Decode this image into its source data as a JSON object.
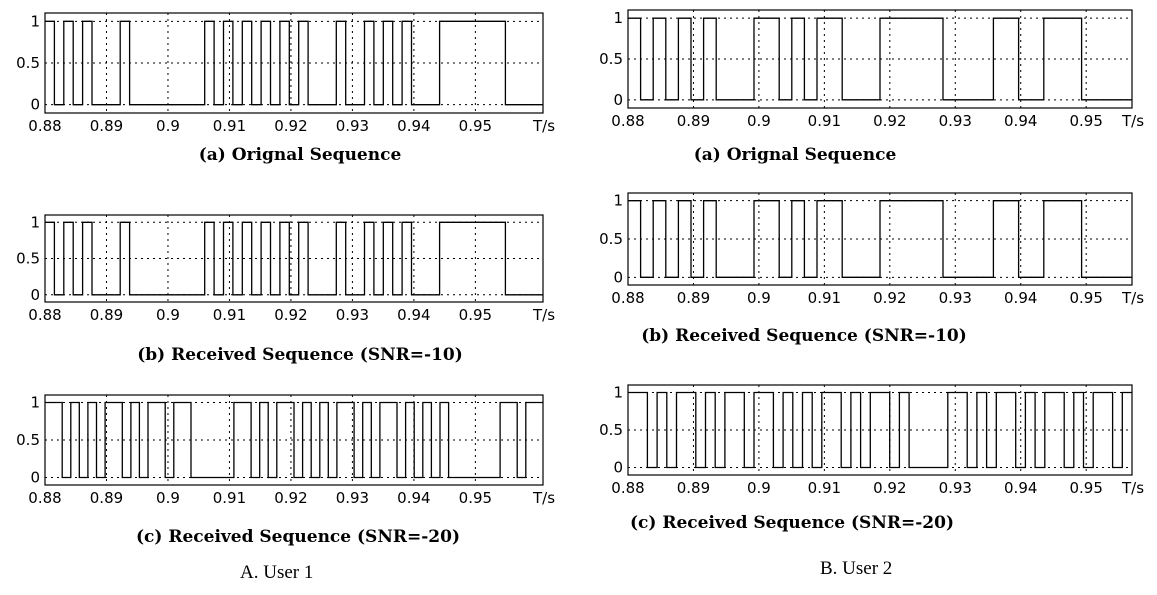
{
  "columns": [
    {
      "caption": "A. User 1"
    },
    {
      "caption": "B. User 2"
    }
  ],
  "chart_data": [
    {
      "type": "line",
      "step": true,
      "title": "(a) Orignal Sequence",
      "x_unit_label": "T/s",
      "xlim": [
        0.88,
        0.961
      ],
      "ylim": [
        -0.1,
        1.1
      ],
      "xticks": [
        "0.88",
        "0.89",
        "0.9",
        "0.91",
        "0.92",
        "0.93",
        "0.94",
        "0.95"
      ],
      "yticks": [
        "0",
        "0.5",
        "1"
      ],
      "grid": true,
      "series": [
        {
          "bits": "10101000100000000101010101010001001010100011111110000"
        }
      ]
    },
    {
      "type": "line",
      "step": true,
      "title": "(b) Received Sequence (SNR=-10)",
      "x_unit_label": "T/s",
      "xlim": [
        0.88,
        0.961
      ],
      "ylim": [
        -0.1,
        1.1
      ],
      "xticks": [
        "0.88",
        "0.89",
        "0.9",
        "0.91",
        "0.92",
        "0.93",
        "0.94",
        "0.95"
      ],
      "yticks": [
        "0",
        "0.5",
        "1"
      ],
      "grid": true,
      "series": [
        {
          "bits": "10101000100000000101010101010001001010100011111110000"
        }
      ]
    },
    {
      "type": "line",
      "step": true,
      "title": "(c) Received Sequence (SNR=-20)",
      "x_unit_label": "T/s",
      "xlim": [
        0.88,
        0.961
      ],
      "ylim": [
        -0.1,
        1.1
      ],
      "xticks": [
        "0.88",
        "0.89",
        "0.9",
        "0.91",
        "0.92",
        "0.93",
        "0.94",
        "0.95"
      ],
      "yticks": [
        "0",
        "0.5",
        "1"
      ],
      "grid": true,
      "series": [
        {
          "bits": "1101010110101101100000110101101010110101101010100000011011"
        }
      ]
    },
    {
      "type": "line",
      "step": true,
      "title": "(a) Orignal Sequence",
      "x_unit_label": "T/s",
      "xlim": [
        0.88,
        0.957
      ],
      "ylim": [
        -0.1,
        1.1
      ],
      "xticks": [
        "0.88",
        "0.89",
        "0.9",
        "0.91",
        "0.92",
        "0.93",
        "0.94",
        "0.95"
      ],
      "yticks": [
        "0",
        "0.5",
        "1"
      ],
      "grid": true,
      "series": [
        {
          "bits": "1010101000110101100011111000011001110000"
        }
      ]
    },
    {
      "type": "line",
      "step": true,
      "title": "(b) Received Sequence (SNR=-10)",
      "x_unit_label": "T/s",
      "xlim": [
        0.88,
        0.957
      ],
      "ylim": [
        -0.1,
        1.1
      ],
      "xticks": [
        "0.88",
        "0.89",
        "0.9",
        "0.91",
        "0.92",
        "0.93",
        "0.94",
        "0.95"
      ],
      "yticks": [
        "0",
        "0.5",
        "1"
      ],
      "grid": true,
      "series": [
        {
          "bits": "1010101000110101100011111000011001110000"
        }
      ]
    },
    {
      "type": "line",
      "step": true,
      "title": "(c) Received Sequence (SNR=-20)",
      "x_unit_label": "T/s",
      "xlim": [
        0.88,
        0.957
      ],
      "ylim": [
        -0.1,
        1.1
      ],
      "xticks": [
        "0.88",
        "0.89",
        "0.9",
        "0.91",
        "0.92",
        "0.93",
        "0.94",
        "0.95"
      ],
      "yticks": [
        "0",
        "0.5",
        "1"
      ],
      "grid": true,
      "series": [
        {
          "bits": "1101011010110110101011010110100001101011010110101101"
        }
      ]
    }
  ]
}
